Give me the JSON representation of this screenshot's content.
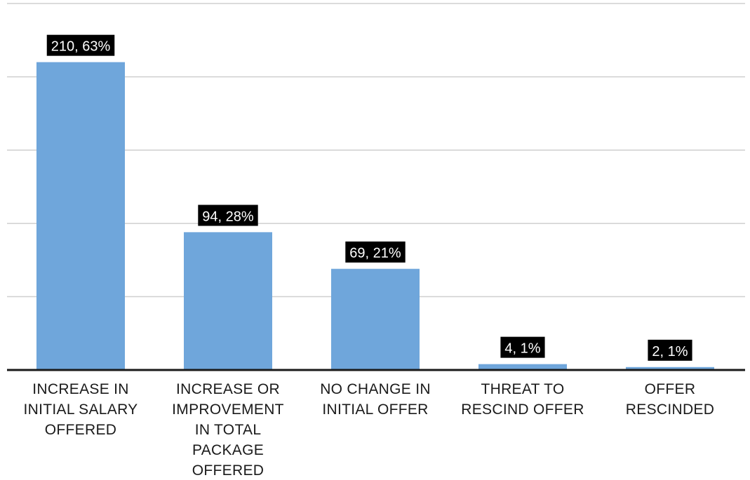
{
  "chart_data": {
    "type": "bar",
    "title": "",
    "xlabel": "",
    "ylabel": "",
    "categories": [
      "INCREASE IN\nINITIAL SALARY\nOFFERED",
      "INCREASE OR\nIMPROVEMENT\nIN TOTAL\nPACKAGE\nOFFERED",
      "NO CHANGE IN\nINITIAL OFFER",
      "THREAT TO\nRESCIND OFFER",
      "OFFER\nRESCINDED"
    ],
    "values": [
      210,
      94,
      69,
      4,
      2
    ],
    "data_labels": [
      "210, 63%",
      "94, 28%",
      "69, 21%",
      "4, 1%",
      "2, 1%"
    ],
    "ylim": [
      0,
      250
    ],
    "y_gridlines": [
      50,
      100,
      150,
      200,
      250
    ],
    "grid": true,
    "legend": "none",
    "colors": {
      "bar": "#6fa6db",
      "label_background": "#000000",
      "label_text": "#ffffff",
      "gridline": "#cfcfcf",
      "axis": "#1a1a1a"
    }
  }
}
